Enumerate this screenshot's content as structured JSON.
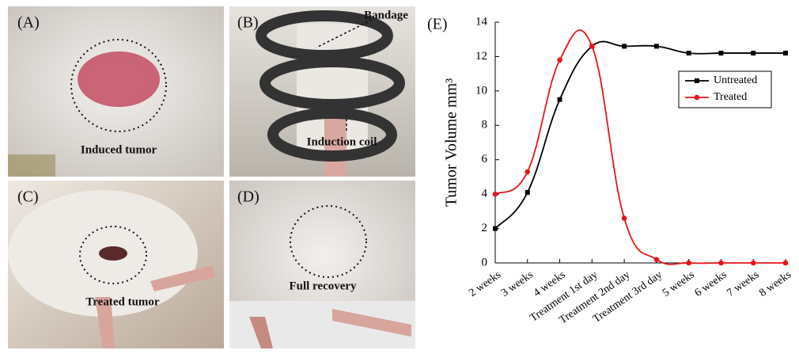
{
  "panels": [
    {
      "label": "(A)",
      "texts": [
        "Induced tumor"
      ]
    },
    {
      "label": "(B)",
      "texts": [
        "Bandage",
        "Induction coil"
      ]
    },
    {
      "label": "(C)",
      "texts": [
        "Treated tumor"
      ]
    },
    {
      "label": "(D)",
      "texts": [
        "Full recovery"
      ]
    }
  ],
  "chart_data": {
    "type": "line",
    "label": "(E)",
    "ylabel": "Tumor Volume mm³",
    "categories": [
      "2 weeks",
      "3 weeks",
      "4 weeks",
      "Treatment 1st day",
      "Treatment 2nd day",
      "Treatment 3rd day",
      "5 weeks",
      "6 weeks",
      "7 weeks",
      "8 weeks"
    ],
    "series": [
      {
        "name": "Untreated",
        "color": "#000000",
        "marker": "square",
        "values": [
          2,
          4.1,
          9.5,
          12.6,
          12.6,
          12.6,
          12.2,
          12.2,
          12.2,
          12.2
        ]
      },
      {
        "name": "Treated",
        "color": "#e8141b",
        "marker": "circle",
        "values": [
          4,
          5.3,
          11.8,
          12.6,
          2.6,
          0.2,
          0,
          0,
          0,
          0
        ]
      }
    ],
    "ylim": [
      0,
      14
    ],
    "yticks": [
      0,
      2,
      4,
      6,
      8,
      10,
      12,
      14
    ],
    "grid": false,
    "legend": "upper-right"
  }
}
